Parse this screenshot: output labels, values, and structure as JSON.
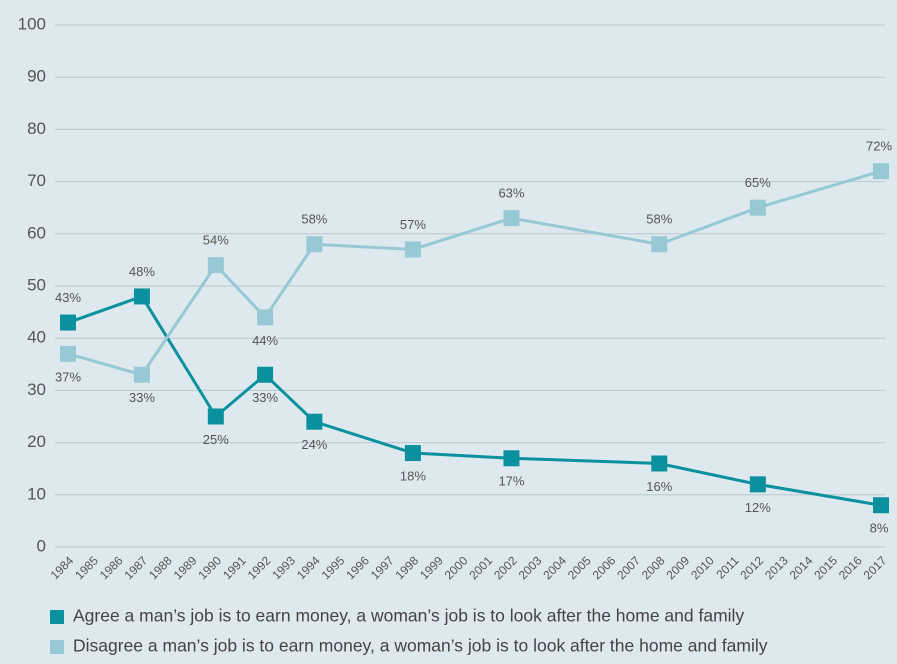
{
  "chart_data": {
    "type": "line",
    "x": [
      1984,
      1987,
      1990,
      1992,
      1994,
      1998,
      2002,
      2008,
      2012,
      2017
    ],
    "xlim": [
      1984,
      2017
    ],
    "xticks": [
      1984,
      1985,
      1986,
      1987,
      1988,
      1989,
      1990,
      1991,
      1992,
      1993,
      1994,
      1995,
      1996,
      1997,
      1998,
      1999,
      2000,
      2001,
      2002,
      2003,
      2004,
      2005,
      2006,
      2007,
      2008,
      2009,
      2010,
      2011,
      2012,
      2013,
      2014,
      2015,
      2016,
      2017
    ],
    "ylim": [
      0,
      100
    ],
    "yticks": [
      0,
      10,
      20,
      30,
      40,
      50,
      60,
      70,
      80,
      90,
      100
    ],
    "grid": true,
    "legend": "bottom",
    "series": [
      {
        "name": "Agree a man’s job is to earn money, a woman’s job is to look after the home and family",
        "color": "#0b919e",
        "values": [
          43,
          48,
          25,
          33,
          24,
          18,
          17,
          16,
          12,
          8
        ],
        "value_labels": [
          "43%",
          "48%",
          "25%",
          "33%",
          "24%",
          "18%",
          "17%",
          "16%",
          "12%",
          "8%"
        ]
      },
      {
        "name": "Disagree a man’s job is to earn money, a woman’s job is to look after the home and family",
        "color": "#97c9d4",
        "values": [
          37,
          33,
          54,
          44,
          58,
          57,
          63,
          58,
          65,
          72
        ],
        "value_labels": [
          "37%",
          "33%",
          "54%",
          "44%",
          "58%",
          "57%",
          "63%",
          "58%",
          "65%",
          "72%"
        ]
      }
    ]
  }
}
